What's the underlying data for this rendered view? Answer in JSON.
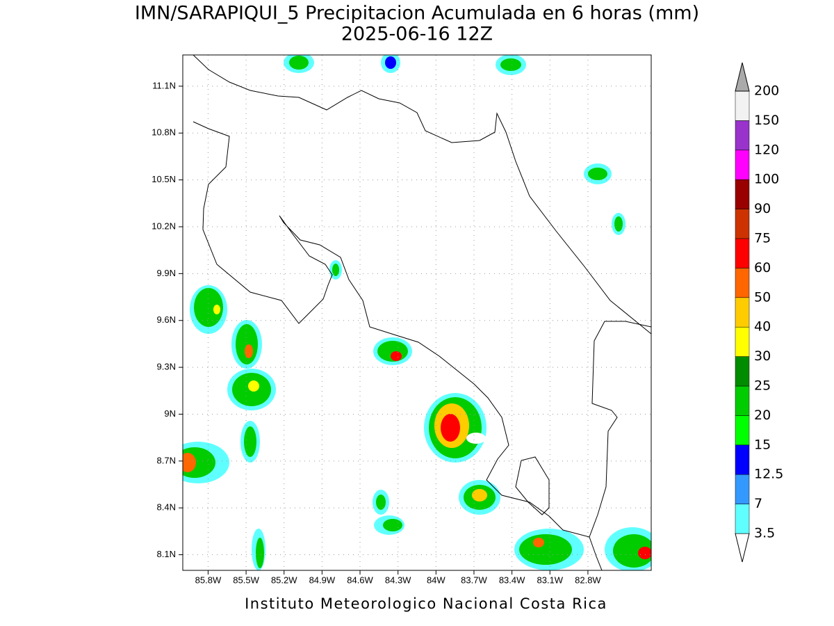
{
  "chart_data": {
    "type": "map",
    "title": "IMN/SARAPIQUI_5 Precipitacion Acumulada en 6 horas (mm)",
    "subtitle": "2025-06-16 12Z",
    "footer": "Instituto Meteorologico Nacional Costa Rica",
    "xlim": [
      -86.0,
      -82.3
    ],
    "ylim": [
      8.0,
      11.3
    ],
    "xticks": [
      {
        "value": -85.8,
        "label": "85.8W"
      },
      {
        "value": -85.5,
        "label": "85.5W"
      },
      {
        "value": -85.2,
        "label": "85.2W"
      },
      {
        "value": -84.9,
        "label": "84.9W"
      },
      {
        "value": -84.6,
        "label": "84.6W"
      },
      {
        "value": -84.3,
        "label": "84.3W"
      },
      {
        "value": -84.0,
        "label": "84W"
      },
      {
        "value": -83.7,
        "label": "83.7W"
      },
      {
        "value": -83.4,
        "label": "83.4W"
      },
      {
        "value": -83.1,
        "label": "83.1W"
      },
      {
        "value": -82.8,
        "label": "82.8W"
      }
    ],
    "yticks": [
      {
        "value": 8.1,
        "label": "8.1N"
      },
      {
        "value": 8.4,
        "label": "8.4N"
      },
      {
        "value": 8.7,
        "label": "8.7N"
      },
      {
        "value": 9.0,
        "label": "9N"
      },
      {
        "value": 9.3,
        "label": "9.3N"
      },
      {
        "value": 9.6,
        "label": "9.6N"
      },
      {
        "value": 9.9,
        "label": "9.9N"
      },
      {
        "value": 10.2,
        "label": "10.2N"
      },
      {
        "value": 10.5,
        "label": "10.5N"
      },
      {
        "value": 10.8,
        "label": "10.8N"
      },
      {
        "value": 11.1,
        "label": "11.1N"
      }
    ],
    "grid": true,
    "colorbar": {
      "levels": [
        3.5,
        7,
        12.5,
        15,
        20,
        25,
        30,
        40,
        50,
        60,
        75,
        90,
        100,
        120,
        150,
        200
      ],
      "colors": [
        "#ffffff",
        "#60ffff",
        "#3399ff",
        "#0000ff",
        "#00ff00",
        "#00cc00",
        "#008c00",
        "#ffff00",
        "#ffcc00",
        "#ff6600",
        "#ff0000",
        "#cc3300",
        "#990000",
        "#ff00ff",
        "#9933cc",
        "#f2f2f2",
        "#aaaaaa"
      ]
    }
  }
}
